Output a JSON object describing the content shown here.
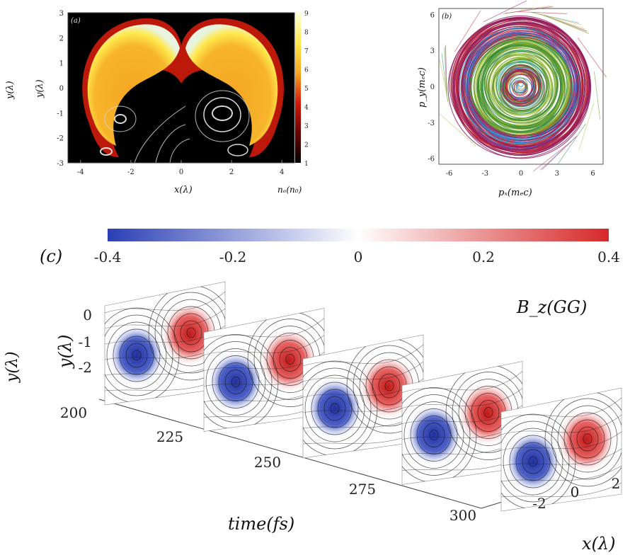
{
  "panel_a": {
    "label": "(a)",
    "xlabel": "x(λ)",
    "ylabel": "y(λ)",
    "ylabel_outer": "y(λ)",
    "colorbar_label": "nₑ(n₀)",
    "x_ticks": [
      "-4",
      "-2",
      "0",
      "2",
      "4"
    ],
    "y_ticks": [
      "3",
      "2",
      "1",
      "0",
      "-1",
      "-2",
      "-3"
    ],
    "cbar_ticks": [
      "9",
      "8",
      "7",
      "6",
      "5",
      "4",
      "3",
      "2",
      "1"
    ],
    "colors": {
      "background": "#000000",
      "core": "#f5a623",
      "rim": "#ffe94d",
      "edge": "#e8f4e0",
      "glow": "#d21c0c"
    }
  },
  "panel_b": {
    "label": "(b)",
    "xlabel": "pₓ(mₑc)",
    "ylabel": "p_y(mₑc)",
    "x_ticks": [
      "-6",
      "-3",
      "0",
      "3",
      "6"
    ],
    "y_ticks": [
      "6",
      "3",
      "0",
      "-3",
      "-6"
    ],
    "ring_colors": [
      "#8e1a5e",
      "#c4262e",
      "#3b6fd8",
      "#1aa3c8",
      "#6a9e2a",
      "#a9c23a",
      "#2b8a3e",
      "#d1a12c"
    ]
  },
  "panel_c": {
    "label": "(c)",
    "colorbar_ticks": [
      "-0.4",
      "-0.2",
      "0",
      "0.2",
      "0.4"
    ],
    "colorbar_label": "B_z(GG)",
    "y_axis_label": "y(λ)",
    "y_axis_outer": "y(λ)",
    "y_ticks": [
      "0",
      "-1",
      "-2"
    ],
    "time_ticks": [
      "200",
      "225",
      "250",
      "275",
      "300"
    ],
    "time_label": "time(fs)",
    "x_ticks": [
      "-2",
      "0",
      "2"
    ],
    "x_label": "x(λ)",
    "colors": {
      "negative": "#2b3fb5",
      "positive": "#d62828",
      "neutral": "#ffffff"
    }
  },
  "chart_data": [
    {
      "type": "heatmap",
      "panel": "a",
      "xlabel": "x(λ)",
      "ylabel": "y(λ)",
      "xlim": [
        -4.5,
        4.5
      ],
      "ylim": [
        -3,
        3
      ],
      "colorbar": {
        "label": "nₑ(n₀)",
        "range": [
          1,
          9
        ]
      },
      "features": [
        "two crescent lobes of high density joined near x=0, y=1.5",
        "field-line contours in the lower cavity"
      ]
    },
    {
      "type": "scatter",
      "panel": "b",
      "xlabel": "pₓ(mₑc)",
      "ylabel": "p_y(mₑc)",
      "xlim": [
        -6.5,
        6.5
      ],
      "ylim": [
        -6.5,
        6.5
      ],
      "features": [
        "dense concentric circular trajectories up to radius ~5.5"
      ]
    },
    {
      "type": "heatmap",
      "panel": "c",
      "zlabel": "B_z(GG)",
      "colorbar_range": [
        -0.4,
        0.4
      ],
      "time_fs": [
        200,
        225,
        250,
        275,
        300
      ],
      "xlabel": "x(λ)",
      "ylabel": "y(λ)",
      "tlabel": "time(fs)",
      "slices": [
        {
          "time": 200,
          "neg_peak": -0.35,
          "pos_peak": 0.3
        },
        {
          "time": 225,
          "neg_peak": -0.37,
          "pos_peak": 0.32
        },
        {
          "time": 250,
          "neg_peak": -0.38,
          "pos_peak": 0.33
        },
        {
          "time": 275,
          "neg_peak": -0.38,
          "pos_peak": 0.34
        },
        {
          "time": 300,
          "neg_peak": -0.39,
          "pos_peak": 0.35
        }
      ]
    }
  ]
}
